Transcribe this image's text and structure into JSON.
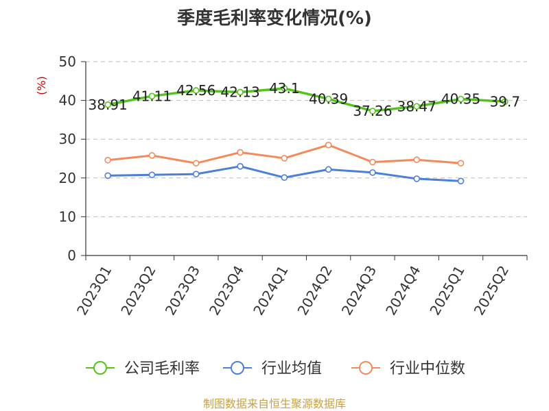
{
  "chart_data": {
    "type": "line",
    "title": "季度毛利率变化情况(%)",
    "ylabel": "(%)",
    "ylim": [
      0,
      50
    ],
    "yticks": [
      0,
      10,
      20,
      30,
      40,
      50
    ],
    "categories": [
      "2023Q1",
      "2023Q2",
      "2023Q3",
      "2023Q4",
      "2024Q1",
      "2024Q2",
      "2024Q3",
      "2024Q4",
      "2025Q1",
      "2025Q2"
    ],
    "series": [
      {
        "name": "公司毛利率",
        "color": "#52c41a",
        "values": [
          38.91,
          41.11,
          42.56,
          42.13,
          43.1,
          40.39,
          37.26,
          38.47,
          40.35,
          39.7
        ],
        "labels": [
          "38.91",
          "41.11",
          "42.56",
          "42.13",
          "43.1",
          "40.39",
          "37.26",
          "38.47",
          "40.35",
          "39.7"
        ]
      },
      {
        "name": "行业均值",
        "color": "#4a7fdb",
        "values": [
          20.6,
          20.8,
          21.0,
          23.0,
          20.1,
          22.2,
          21.4,
          19.8,
          19.2,
          null
        ]
      },
      {
        "name": "行业中位数",
        "color": "#f5895a",
        "values": [
          24.6,
          25.8,
          23.8,
          26.6,
          25.1,
          28.5,
          24.1,
          24.7,
          23.8,
          null
        ]
      }
    ],
    "grid": true,
    "legend_position": "bottom"
  },
  "footer": {
    "source": "制图数据来自恒生聚源数据库"
  },
  "colors": {
    "title": "#333333",
    "ylabel": "#cc0000",
    "grid": "#bbbbbb",
    "axis": "#333333",
    "source": "#c8a040"
  }
}
